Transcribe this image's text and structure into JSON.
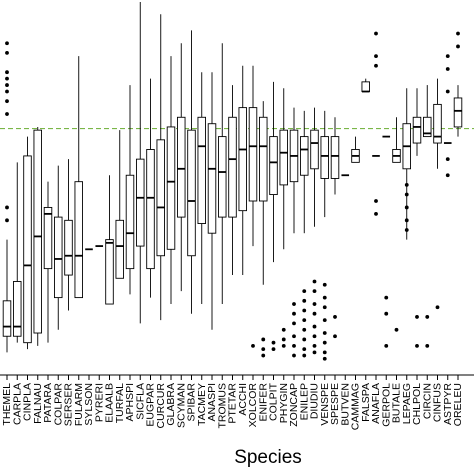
{
  "chart_data": {
    "type": "box",
    "title": "",
    "xlabel": "Species",
    "ylabel": "",
    "ylim": [
      0,
      100
    ],
    "reference_line": {
      "y": 72.5,
      "color": "#7ab648",
      "style": "dashed"
    },
    "grid": false,
    "legend": "none",
    "categories": [
      "THEMEL",
      "CARPLA",
      "CINPLA",
      "FALNAU",
      "PATARA",
      "COLPAR",
      "SERSER",
      "FULARM",
      "SYLSON",
      "PYRERI",
      "ELAALB",
      "TURFAL",
      "APHSPI",
      "SICFLA",
      "EUGPAR",
      "CURCUR",
      "GLABRA",
      "SCYMAN",
      "SPIBAR",
      "TACMEY",
      "ANASPI",
      "TROMUS",
      "PTETAR",
      "ACCHI",
      "XOLCOR",
      "ENIFER",
      "COLPIT",
      "PHYGIN",
      "ZONCAP",
      "ENILEP",
      "DIUDIU",
      "VENSPE",
      "SPESPE",
      "BUTVEN",
      "CAMMAG",
      "FALSPA",
      "ANAFLA",
      "GERPOL",
      "BUTALE",
      "LEPAEG",
      "CHLPOL",
      "CIRCIN",
      "CINFUS",
      "ASTPYR",
      "ORELEU"
    ],
    "series": [
      {
        "whisker_low": 3,
        "q1": 8,
        "median": 11,
        "q3": 19,
        "whisker_high": 38,
        "outliers": [
          44,
          48,
          77,
          81,
          84,
          86,
          88,
          90,
          96,
          99
        ]
      },
      {
        "whisker_low": 6,
        "q1": 8,
        "median": 11,
        "q3": 25,
        "whisker_high": 62,
        "outliers": []
      },
      {
        "whisker_low": 4,
        "q1": 6,
        "median": 30,
        "q3": 64,
        "whisker_high": 70,
        "outliers": []
      },
      {
        "whisker_low": 5,
        "q1": 9,
        "median": 39,
        "q3": 72,
        "whisker_high": 73,
        "outliers": []
      },
      {
        "whisker_low": 6,
        "q1": 29,
        "median": 46,
        "q3": 48,
        "whisker_high": 56,
        "outliers": []
      },
      {
        "whisker_low": 10,
        "q1": 20,
        "median": 32,
        "q3": 45,
        "whisker_high": 61,
        "outliers": []
      },
      {
        "whisker_low": 16,
        "q1": 27,
        "median": 33,
        "q3": 44,
        "whisker_high": 63,
        "outliers": []
      },
      {
        "whisker_low": 20,
        "q1": 20,
        "median": 33,
        "q3": 56,
        "whisker_high": 95,
        "outliers": []
      },
      {
        "whisker_low": 35,
        "q1": 35,
        "median": 35,
        "q3": 35,
        "whisker_high": 35,
        "outliers": []
      },
      {
        "whisker_low": 36,
        "q1": 36,
        "median": 36,
        "q3": 36,
        "whisker_high": 36,
        "outliers": []
      },
      {
        "whisker_low": 18,
        "q1": 18,
        "median": 37,
        "q3": 38,
        "whisker_high": 58,
        "outliers": []
      },
      {
        "whisker_low": 26,
        "q1": 26,
        "median": 36,
        "q3": 44,
        "whisker_high": 72,
        "outliers": []
      },
      {
        "whisker_low": 21,
        "q1": 29,
        "median": 40,
        "q3": 58,
        "whisker_high": 86,
        "outliers": []
      },
      {
        "whisker_low": 12,
        "q1": 36,
        "median": 51,
        "q3": 63,
        "whisker_high": 112,
        "outliers": []
      },
      {
        "whisker_low": 20,
        "q1": 29,
        "median": 51,
        "q3": 66,
        "whisker_high": 88,
        "outliers": []
      },
      {
        "whisker_low": 13,
        "q1": 33,
        "median": 48,
        "q3": 69,
        "whisker_high": 108,
        "outliers": []
      },
      {
        "whisker_low": 18,
        "q1": 35,
        "median": 56,
        "q3": 73,
        "whisker_high": 95,
        "outliers": []
      },
      {
        "whisker_low": 22,
        "q1": 45,
        "median": 60,
        "q3": 76,
        "whisker_high": 99,
        "outliers": []
      },
      {
        "whisker_low": 15,
        "q1": 33,
        "median": 50,
        "q3": 72,
        "whisker_high": 103,
        "outliers": []
      },
      {
        "whisker_low": 18,
        "q1": 43,
        "median": 67,
        "q3": 76,
        "whisker_high": 90,
        "outliers": []
      },
      {
        "whisker_low": 10,
        "q1": 40,
        "median": 60,
        "q3": 74,
        "whisker_high": 90,
        "outliers": []
      },
      {
        "whisker_low": 18,
        "q1": 45,
        "median": 59,
        "q3": 70,
        "whisker_high": 99,
        "outliers": []
      },
      {
        "whisker_low": 27,
        "q1": 45,
        "median": 63,
        "q3": 76,
        "whisker_high": 86,
        "outliers": []
      },
      {
        "whisker_low": 27,
        "q1": 47,
        "median": 66,
        "q3": 79,
        "whisker_high": 92,
        "outliers": []
      },
      {
        "whisker_low": 36,
        "q1": 50,
        "median": 67,
        "q3": 79,
        "whisker_high": 92,
        "outliers": [
          5
        ]
      },
      {
        "whisker_low": 24,
        "q1": 50,
        "median": 67,
        "q3": 76,
        "whisker_high": 81,
        "outliers": [
          2,
          4,
          7
        ]
      },
      {
        "whisker_low": 31,
        "q1": 52,
        "median": 62,
        "q3": 70,
        "whisker_high": 87,
        "outliers": [
          4,
          6
        ]
      },
      {
        "whisker_low": 35,
        "q1": 55,
        "median": 65,
        "q3": 72,
        "whisker_high": 85,
        "outliers": [
          5,
          7,
          10
        ]
      },
      {
        "whisker_low": 40,
        "q1": 56,
        "median": 64,
        "q3": 72,
        "whisker_high": 79,
        "outliers": [
          2,
          5,
          8,
          12,
          15,
          18
        ]
      },
      {
        "whisker_low": 40,
        "q1": 58,
        "median": 66,
        "q3": 70,
        "whisker_high": 78,
        "outliers": [
          2,
          4,
          7,
          10,
          13,
          16,
          19,
          22
        ]
      },
      {
        "whisker_low": 42,
        "q1": 60,
        "median": 68,
        "q3": 72,
        "whisker_high": 79,
        "outliers": [
          3,
          5,
          8,
          11,
          15,
          18,
          22,
          25
        ]
      },
      {
        "whisker_low": 45,
        "q1": 57,
        "median": 64,
        "q3": 70,
        "whisker_high": 78,
        "outliers": [
          1,
          3,
          6,
          9,
          13,
          17,
          20,
          24
        ]
      },
      {
        "whisker_low": 52,
        "q1": 57,
        "median": 64,
        "q3": 70,
        "whisker_high": 76,
        "outliers": [
          8,
          14
        ]
      },
      {
        "whisker_low": 58,
        "q1": 58,
        "median": 58,
        "q3": 58,
        "whisker_high": 58,
        "outliers": []
      },
      {
        "whisker_low": 62,
        "q1": 62,
        "median": 64,
        "q3": 66,
        "whisker_high": 70,
        "outliers": []
      },
      {
        "whisker_low": 84,
        "q1": 84,
        "median": 84,
        "q3": 87,
        "whisker_high": 88,
        "outliers": []
      },
      {
        "whisker_low": 64,
        "q1": 64,
        "median": 64,
        "q3": 64,
        "whisker_high": 64,
        "outliers": [
          46,
          50,
          92,
          95,
          102
        ]
      },
      {
        "whisker_low": 70,
        "q1": 70,
        "median": 70,
        "q3": 70,
        "whisker_high": 70,
        "outliers": [
          5,
          15,
          20
        ]
      },
      {
        "whisker_low": 62,
        "q1": 62,
        "median": 64,
        "q3": 66,
        "whisker_high": 76,
        "outliers": [
          10
        ]
      },
      {
        "whisker_low": 38,
        "q1": 60,
        "median": 67,
        "q3": 74,
        "whisker_high": 85,
        "outliers": [
          41,
          44,
          48,
          52,
          55
        ]
      },
      {
        "whisker_low": 64,
        "q1": 68,
        "median": 73,
        "q3": 76,
        "whisker_high": 85,
        "outliers": [
          5,
          14
        ]
      },
      {
        "whisker_low": 70,
        "q1": 70,
        "median": 71,
        "q3": 76,
        "whisker_high": 86,
        "outliers": [
          5,
          14
        ]
      },
      {
        "whisker_low": 60,
        "q1": 68,
        "median": 70,
        "q3": 80,
        "whisker_high": 88,
        "outliers": [
          17
        ]
      },
      {
        "whisker_low": 68,
        "q1": 68,
        "median": 68,
        "q3": 68,
        "whisker_high": 68,
        "outliers": [
          58,
          63,
          84,
          91,
          95
        ]
      },
      {
        "whisker_low": 70,
        "q1": 73,
        "median": 78,
        "q3": 82,
        "whisker_high": 86,
        "outliers": [
          98,
          102
        ]
      }
    ]
  }
}
